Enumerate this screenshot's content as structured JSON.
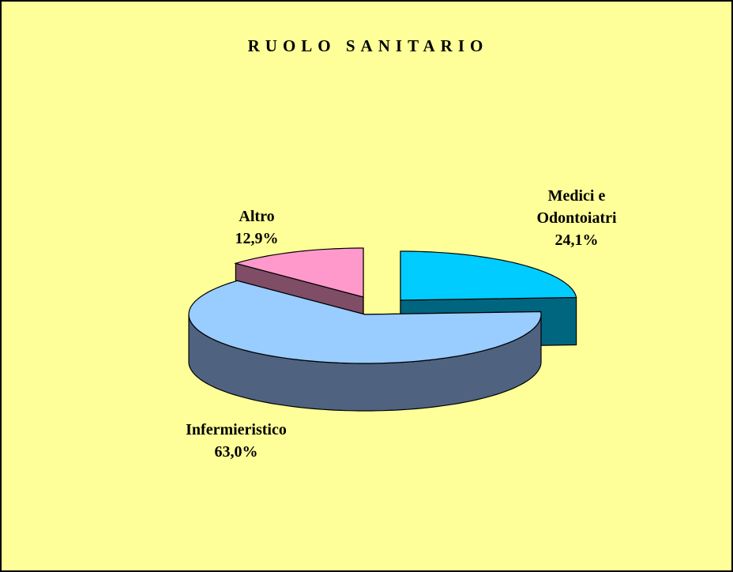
{
  "chart_data": {
    "type": "pie3d",
    "title": "RUOLO SANITARIO",
    "categories": [
      "Medici e Odontoiatri",
      "Infermieristico",
      "Altro"
    ],
    "values": [
      24.1,
      63.0,
      12.9
    ],
    "value_labels": [
      "24,1%",
      "63,0%",
      "12,9%"
    ],
    "colors": [
      "#00ccff",
      "#99ccff",
      "#ff99cc"
    ],
    "side_colors": [
      "#006680",
      "#4f6380",
      "#804d66"
    ]
  }
}
